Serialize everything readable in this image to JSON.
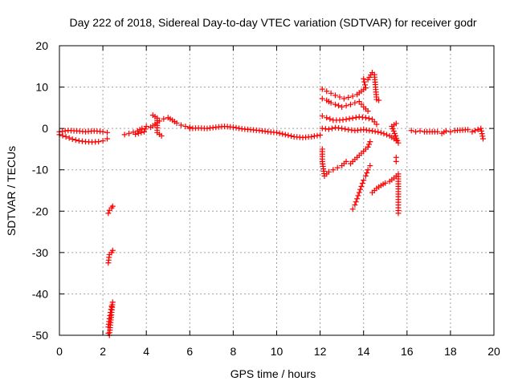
{
  "chart_data": {
    "type": "scatter",
    "title": "Day 222 of 2018, Sidereal Day-to-day VTEC variation (SDTVAR) for receiver godr",
    "xlabel": "GPS time / hours",
    "ylabel": "SDTVAR / TECUs",
    "xlim": [
      0,
      20
    ],
    "ylim": [
      -50,
      20
    ],
    "xticks": [
      "0",
      "2",
      "4",
      "6",
      "8",
      "10",
      "12",
      "14",
      "16",
      "18",
      "20"
    ],
    "yticks": [
      "-50",
      "-40",
      "-30",
      "-20",
      "-10",
      "0",
      "10",
      "20"
    ],
    "grid": true,
    "marker": "+",
    "color": "#ff0000",
    "segments": [
      {
        "name": "base-0",
        "points": [
          [
            0,
            -0.8
          ],
          [
            0.4,
            -0.5
          ],
          [
            0.8,
            -0.6
          ],
          [
            1.2,
            -0.8
          ],
          [
            1.6,
            -0.6
          ],
          [
            2.0,
            -0.8
          ],
          [
            2.2,
            -1.0
          ]
        ]
      },
      {
        "name": "base-0b",
        "points": [
          [
            0.0,
            -1.5
          ],
          [
            0.3,
            -2.0
          ],
          [
            0.6,
            -2.6
          ],
          [
            0.9,
            -3.0
          ],
          [
            1.2,
            -3.2
          ],
          [
            1.5,
            -3.3
          ],
          [
            1.8,
            -3.2
          ],
          [
            2.0,
            -3.0
          ],
          [
            2.2,
            -2.5
          ]
        ]
      },
      {
        "name": "dip-2h",
        "points": [
          [
            2.25,
            -48
          ],
          [
            2.3,
            -46
          ],
          [
            2.35,
            -44.5
          ],
          [
            2.4,
            -43
          ],
          [
            2.45,
            -42
          ],
          [
            2.3,
            -50
          ],
          [
            2.25,
            -49.5
          ]
        ]
      },
      {
        "name": "dip-2h-b",
        "points": [
          [
            2.25,
            -32.5
          ],
          [
            2.3,
            -30.5
          ],
          [
            2.4,
            -30
          ],
          [
            2.45,
            -29.5
          ]
        ]
      },
      {
        "name": "dip-2h-c",
        "points": [
          [
            2.25,
            -20.5
          ],
          [
            2.3,
            -19.8
          ],
          [
            2.4,
            -19.2
          ],
          [
            2.45,
            -18.8
          ]
        ]
      },
      {
        "name": "base-3h",
        "points": [
          [
            3.0,
            -1.5
          ],
          [
            3.2,
            -1.2
          ],
          [
            3.4,
            -0.9
          ],
          [
            3.6,
            -0.6
          ],
          [
            3.8,
            0.0
          ],
          [
            4.0,
            0.5
          ],
          [
            3.9,
            -0.8
          ],
          [
            3.5,
            -1.4
          ]
        ]
      },
      {
        "name": "bump-4to6",
        "points": [
          [
            4.2,
            0.3
          ],
          [
            4.4,
            1.0
          ],
          [
            4.6,
            1.8
          ],
          [
            4.8,
            2.3
          ],
          [
            5.0,
            2.6
          ],
          [
            5.2,
            2.0
          ],
          [
            5.4,
            1.3
          ],
          [
            5.6,
            0.8
          ],
          [
            5.8,
            0.5
          ],
          [
            6.0,
            0.3
          ],
          [
            4.3,
            3.2
          ],
          [
            4.5,
            2.5
          ],
          [
            4.5,
            -1.0
          ],
          [
            4.7,
            -1.8
          ]
        ]
      },
      {
        "name": "base-6to10",
        "points": [
          [
            6.0,
            0.0
          ],
          [
            6.4,
            0.1
          ],
          [
            6.8,
            0.0
          ],
          [
            7.2,
            0.3
          ],
          [
            7.6,
            0.5
          ],
          [
            8.0,
            0.3
          ],
          [
            8.4,
            -0.1
          ],
          [
            8.8,
            -0.3
          ],
          [
            9.2,
            -0.5
          ],
          [
            9.6,
            -0.8
          ],
          [
            10.0,
            -1.0
          ],
          [
            10.4,
            -1.5
          ],
          [
            10.8,
            -2.0
          ],
          [
            11.2,
            -2.2
          ],
          [
            11.6,
            -2.0
          ],
          [
            12.0,
            -1.6
          ]
        ]
      },
      {
        "name": "storm-upper",
        "points": [
          [
            12.1,
            9.5
          ],
          [
            12.3,
            9.0
          ],
          [
            12.5,
            8.5
          ],
          [
            12.7,
            8.0
          ],
          [
            12.9,
            7.6
          ],
          [
            13.1,
            7.2
          ],
          [
            13.3,
            7.5
          ],
          [
            13.5,
            7.8
          ],
          [
            13.7,
            8.2
          ],
          [
            13.9,
            9.0
          ],
          [
            14.1,
            9.8
          ],
          [
            14.0,
            12.0
          ],
          [
            14.2,
            11.8
          ],
          [
            14.4,
            13.5
          ],
          [
            14.5,
            13.0
          ],
          [
            14.6,
            7.0
          ],
          [
            14.7,
            6.8
          ]
        ]
      },
      {
        "name": "storm-upper-b",
        "points": [
          [
            12.1,
            7.2
          ],
          [
            12.3,
            6.8
          ],
          [
            12.5,
            6.2
          ],
          [
            12.7,
            5.8
          ],
          [
            13.0,
            5.2
          ],
          [
            13.2,
            5.5
          ],
          [
            13.4,
            5.8
          ],
          [
            13.6,
            6.2
          ],
          [
            13.8,
            6.5
          ],
          [
            14.0,
            5.2
          ],
          [
            14.2,
            4.2
          ]
        ]
      },
      {
        "name": "storm-mid",
        "points": [
          [
            12.1,
            3.0
          ],
          [
            12.3,
            2.6
          ],
          [
            12.6,
            2.0
          ],
          [
            12.9,
            2.0
          ],
          [
            13.2,
            2.2
          ],
          [
            13.5,
            2.5
          ],
          [
            13.8,
            2.8
          ],
          [
            14.1,
            2.6
          ],
          [
            14.4,
            2.2
          ],
          [
            14.6,
            1.0
          ]
        ]
      },
      {
        "name": "storm-zero",
        "points": [
          [
            12.1,
            0.0
          ],
          [
            12.4,
            -0.2
          ],
          [
            12.7,
            0.2
          ],
          [
            13.0,
            0.0
          ],
          [
            13.3,
            -0.3
          ],
          [
            13.6,
            -0.5
          ],
          [
            14.0,
            -0.3
          ],
          [
            14.4,
            -0.6
          ],
          [
            14.8,
            -1.0
          ],
          [
            15.2,
            -1.8
          ],
          [
            15.5,
            -2.8
          ],
          [
            15.6,
            -3.5
          ],
          [
            15.3,
            0.5
          ],
          [
            15.5,
            1.2
          ]
        ]
      },
      {
        "name": "storm-neg",
        "points": [
          [
            12.1,
            -5.0
          ],
          [
            12.1,
            -8.0
          ],
          [
            12.2,
            -11.5
          ],
          [
            12.4,
            -10.5
          ],
          [
            12.6,
            -10.0
          ],
          [
            12.8,
            -9.5
          ],
          [
            13.0,
            -9.0
          ],
          [
            13.2,
            -8.0
          ],
          [
            13.4,
            -8.5
          ],
          [
            13.6,
            -7.5
          ],
          [
            13.8,
            -6.5
          ],
          [
            14.0,
            -5.5
          ],
          [
            14.2,
            -4.5
          ],
          [
            14.3,
            -3.2
          ]
        ]
      },
      {
        "name": "storm-deep",
        "points": [
          [
            13.5,
            -19.5
          ],
          [
            13.6,
            -18.5
          ],
          [
            13.7,
            -17.0
          ],
          [
            13.8,
            -15.5
          ],
          [
            13.9,
            -14.0
          ],
          [
            14.0,
            -12.5
          ],
          [
            14.1,
            -11.5
          ],
          [
            14.2,
            -10.0
          ],
          [
            14.3,
            -9.0
          ]
        ]
      },
      {
        "name": "storm-deep-b",
        "points": [
          [
            14.4,
            -15.5
          ],
          [
            14.6,
            -14.5
          ],
          [
            14.8,
            -13.8
          ],
          [
            15.0,
            -13.2
          ],
          [
            15.2,
            -12.8
          ],
          [
            15.4,
            -12.0
          ],
          [
            15.6,
            -11.0
          ],
          [
            15.6,
            -14.0
          ],
          [
            15.6,
            -16.5
          ],
          [
            15.6,
            -20.5
          ],
          [
            15.5,
            -8.0
          ],
          [
            15.5,
            -7.0
          ]
        ]
      },
      {
        "name": "late-base",
        "points": [
          [
            16.2,
            -0.5
          ],
          [
            16.4,
            -0.8
          ],
          [
            16.6,
            -0.6
          ],
          [
            16.8,
            -0.8
          ],
          [
            17.4,
            -0.8
          ],
          [
            17.6,
            -1.2
          ],
          [
            17.8,
            -0.6
          ],
          [
            18.0,
            -0.8
          ],
          [
            18.2,
            -0.5
          ],
          [
            18.8,
            -0.3
          ],
          [
            19.0,
            -0.8
          ],
          [
            19.4,
            0.0
          ],
          [
            19.5,
            -2.5
          ]
        ]
      }
    ]
  }
}
